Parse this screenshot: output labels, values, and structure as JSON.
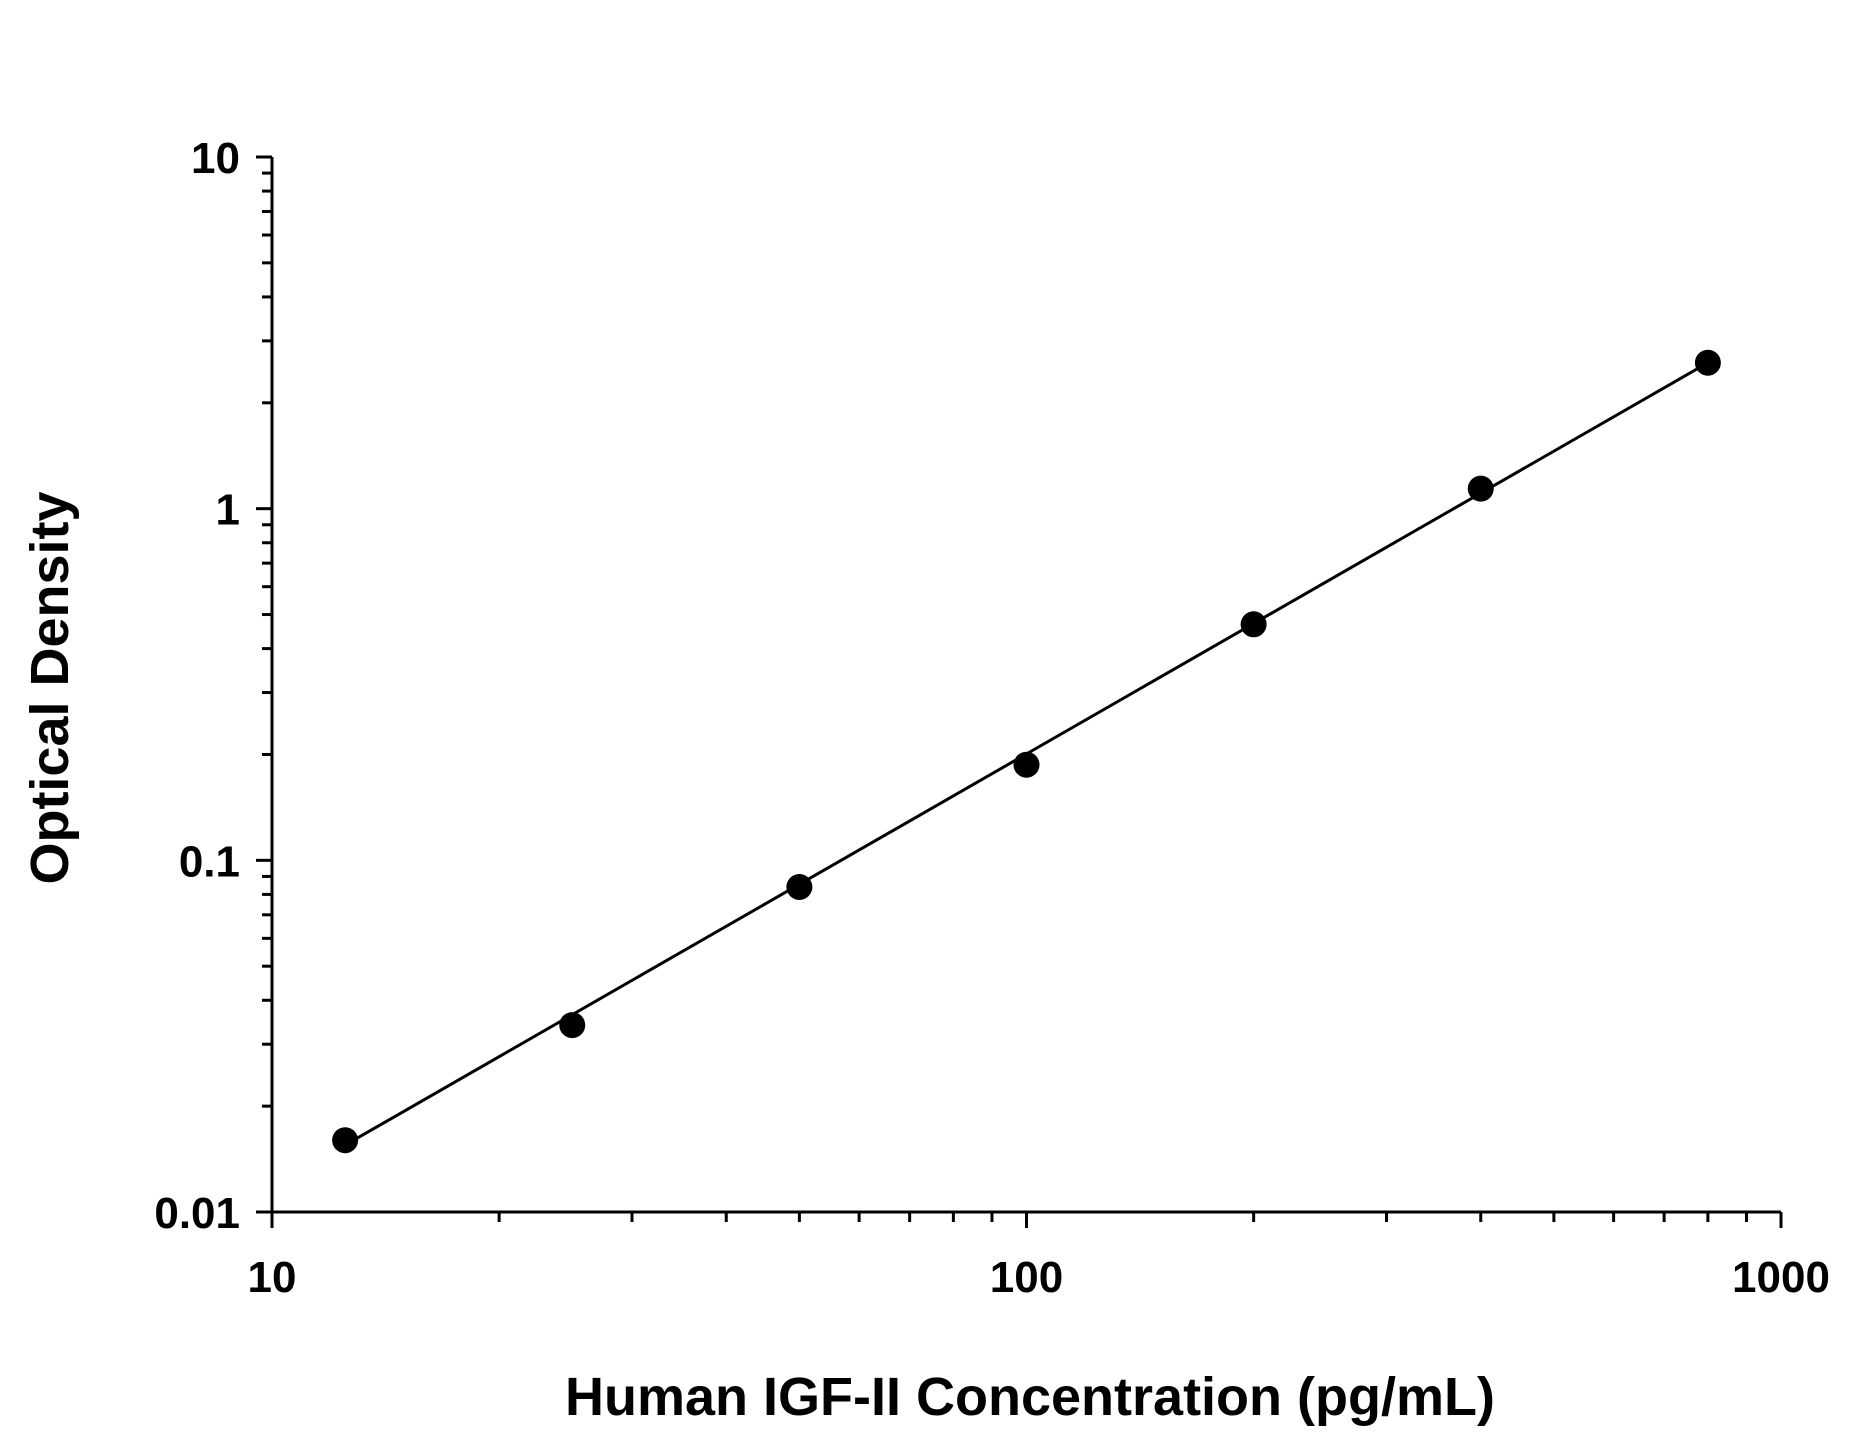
{
  "chart_data": {
    "type": "scatter",
    "title": "",
    "xlabel": "Human IGF-II Concentration (pg/mL)",
    "ylabel": "Optical Density",
    "x_scale": "log",
    "y_scale": "log",
    "xlim": [
      10,
      1000
    ],
    "ylim": [
      0.01,
      10
    ],
    "x_ticks": [
      {
        "value": 10,
        "label": "10"
      },
      {
        "value": 100,
        "label": "100"
      },
      {
        "value": 1000,
        "label": "1000"
      }
    ],
    "y_ticks": [
      {
        "value": 0.01,
        "label": "0.01"
      },
      {
        "value": 0.1,
        "label": "0.1"
      },
      {
        "value": 1,
        "label": "1"
      },
      {
        "value": 10,
        "label": "10"
      }
    ],
    "grid": false,
    "legend": "none",
    "series": [
      {
        "x": [
          12.5,
          25,
          50,
          100,
          200,
          400,
          800
        ],
        "y": [
          0.016,
          0.034,
          0.084,
          0.187,
          0.469,
          1.14,
          2.6
        ]
      }
    ],
    "fit_line": {
      "x": [
        12.5,
        800
      ],
      "y": [
        0.0155,
        2.6
      ]
    },
    "colors": {
      "marker": "#000000",
      "line": "#000000",
      "axis": "#000000"
    }
  }
}
